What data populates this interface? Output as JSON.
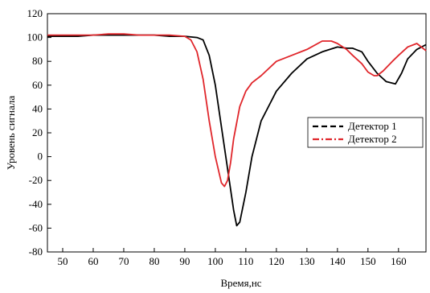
{
  "chart_data": {
    "type": "line",
    "title": "",
    "xlabel": "Время,нс",
    "ylabel": "Уровень сигнала",
    "xlim": [
      45,
      169
    ],
    "ylim": [
      -80,
      120
    ],
    "xticks": [
      50,
      60,
      70,
      80,
      90,
      100,
      110,
      120,
      130,
      140,
      150,
      160
    ],
    "yticks": [
      -80,
      -60,
      -40,
      -20,
      0,
      20,
      40,
      60,
      80,
      100,
      120
    ],
    "grid": false,
    "legend_position": "right",
    "series": [
      {
        "name": "Детектор 1",
        "color": "#000000",
        "style": "dash",
        "x": [
          45,
          50,
          55,
          60,
          65,
          70,
          75,
          80,
          85,
          90,
          94,
          96,
          98,
          100,
          102,
          104,
          106,
          107,
          108,
          110,
          112,
          115,
          118,
          120,
          125,
          130,
          135,
          140,
          143,
          145,
          148,
          150,
          153,
          156,
          159,
          161,
          163,
          166,
          169
        ],
        "y": [
          101,
          101,
          101,
          102,
          102,
          102,
          102,
          102,
          101,
          101,
          100,
          98,
          85,
          60,
          25,
          -10,
          -45,
          -58,
          -55,
          -30,
          0,
          30,
          45,
          55,
          70,
          82,
          88,
          92,
          91,
          91,
          88,
          80,
          70,
          63,
          61,
          70,
          82,
          90,
          94
        ]
      },
      {
        "name": "Детектор 2",
        "color": "#e0262b",
        "style": "dashdot",
        "x": [
          45,
          50,
          55,
          60,
          65,
          70,
          75,
          80,
          85,
          90,
          92,
          94,
          96,
          98,
          100,
          102,
          103,
          104,
          105,
          106,
          108,
          110,
          112,
          115,
          120,
          125,
          130,
          135,
          138,
          140,
          143,
          145,
          148,
          150,
          152,
          153,
          155,
          158,
          160,
          163,
          166,
          169
        ],
        "y": [
          102,
          102,
          102,
          102,
          103,
          103,
          102,
          102,
          102,
          101,
          98,
          88,
          65,
          30,
          0,
          -22,
          -25,
          -20,
          -5,
          15,
          42,
          55,
          62,
          68,
          80,
          85,
          90,
          97,
          97,
          95,
          90,
          85,
          78,
          71,
          68,
          68,
          72,
          80,
          85,
          92,
          95,
          89
        ]
      }
    ]
  }
}
